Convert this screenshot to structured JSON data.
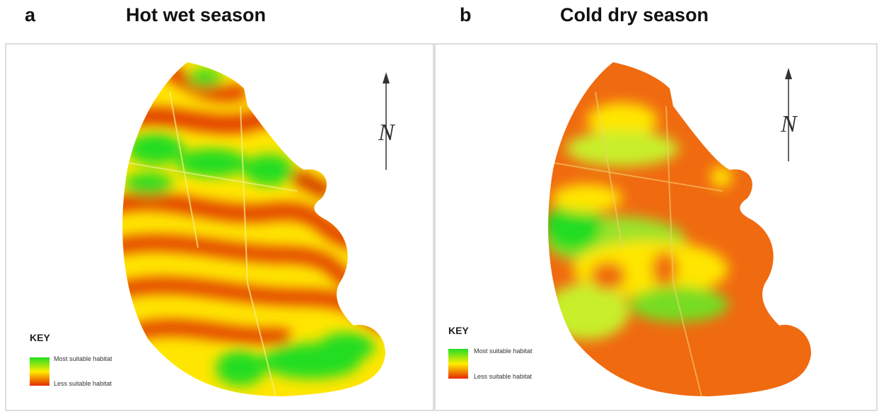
{
  "panels": [
    {
      "letter": "a",
      "title": "Hot wet season",
      "north": "N",
      "key": {
        "title": "KEY",
        "most": "Most suitable habitat",
        "less": "Less suitable habitat"
      }
    },
    {
      "letter": "b",
      "title": "Cold dry season",
      "north": "N",
      "key": {
        "title": "KEY",
        "most": "Most suitable habitat",
        "less": "Less suitable habitat"
      }
    }
  ]
}
